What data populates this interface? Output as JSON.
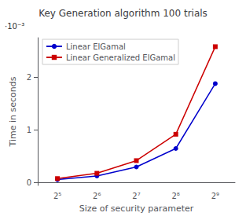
{
  "chart_data": {
    "type": "line",
    "title": "Key Generation algorithm 100 trials",
    "x_label": "Size of security parameter",
    "y_label": "Time in seconds",
    "categories": [
      "2⁵",
      "2⁶",
      "2⁷",
      "2⁸",
      "2⁹"
    ],
    "series": [
      {
        "name": "Linear ElGamal",
        "color": "#0000cc",
        "marker": "circle",
        "values": [
          0.06,
          0.13,
          0.3,
          0.65,
          1.88
        ]
      },
      {
        "name": "Linear Generalized ElGamal",
        "color": "#cc0000",
        "marker": "square",
        "values": [
          0.08,
          0.18,
          0.42,
          0.92,
          2.58
        ]
      }
    ],
    "ylim": [
      -0.05,
      2.75
    ],
    "yticks": [
      0,
      1,
      2
    ],
    "annotations": [
      "·10⁻³"
    ],
    "legend": "upper left",
    "grid": false
  }
}
